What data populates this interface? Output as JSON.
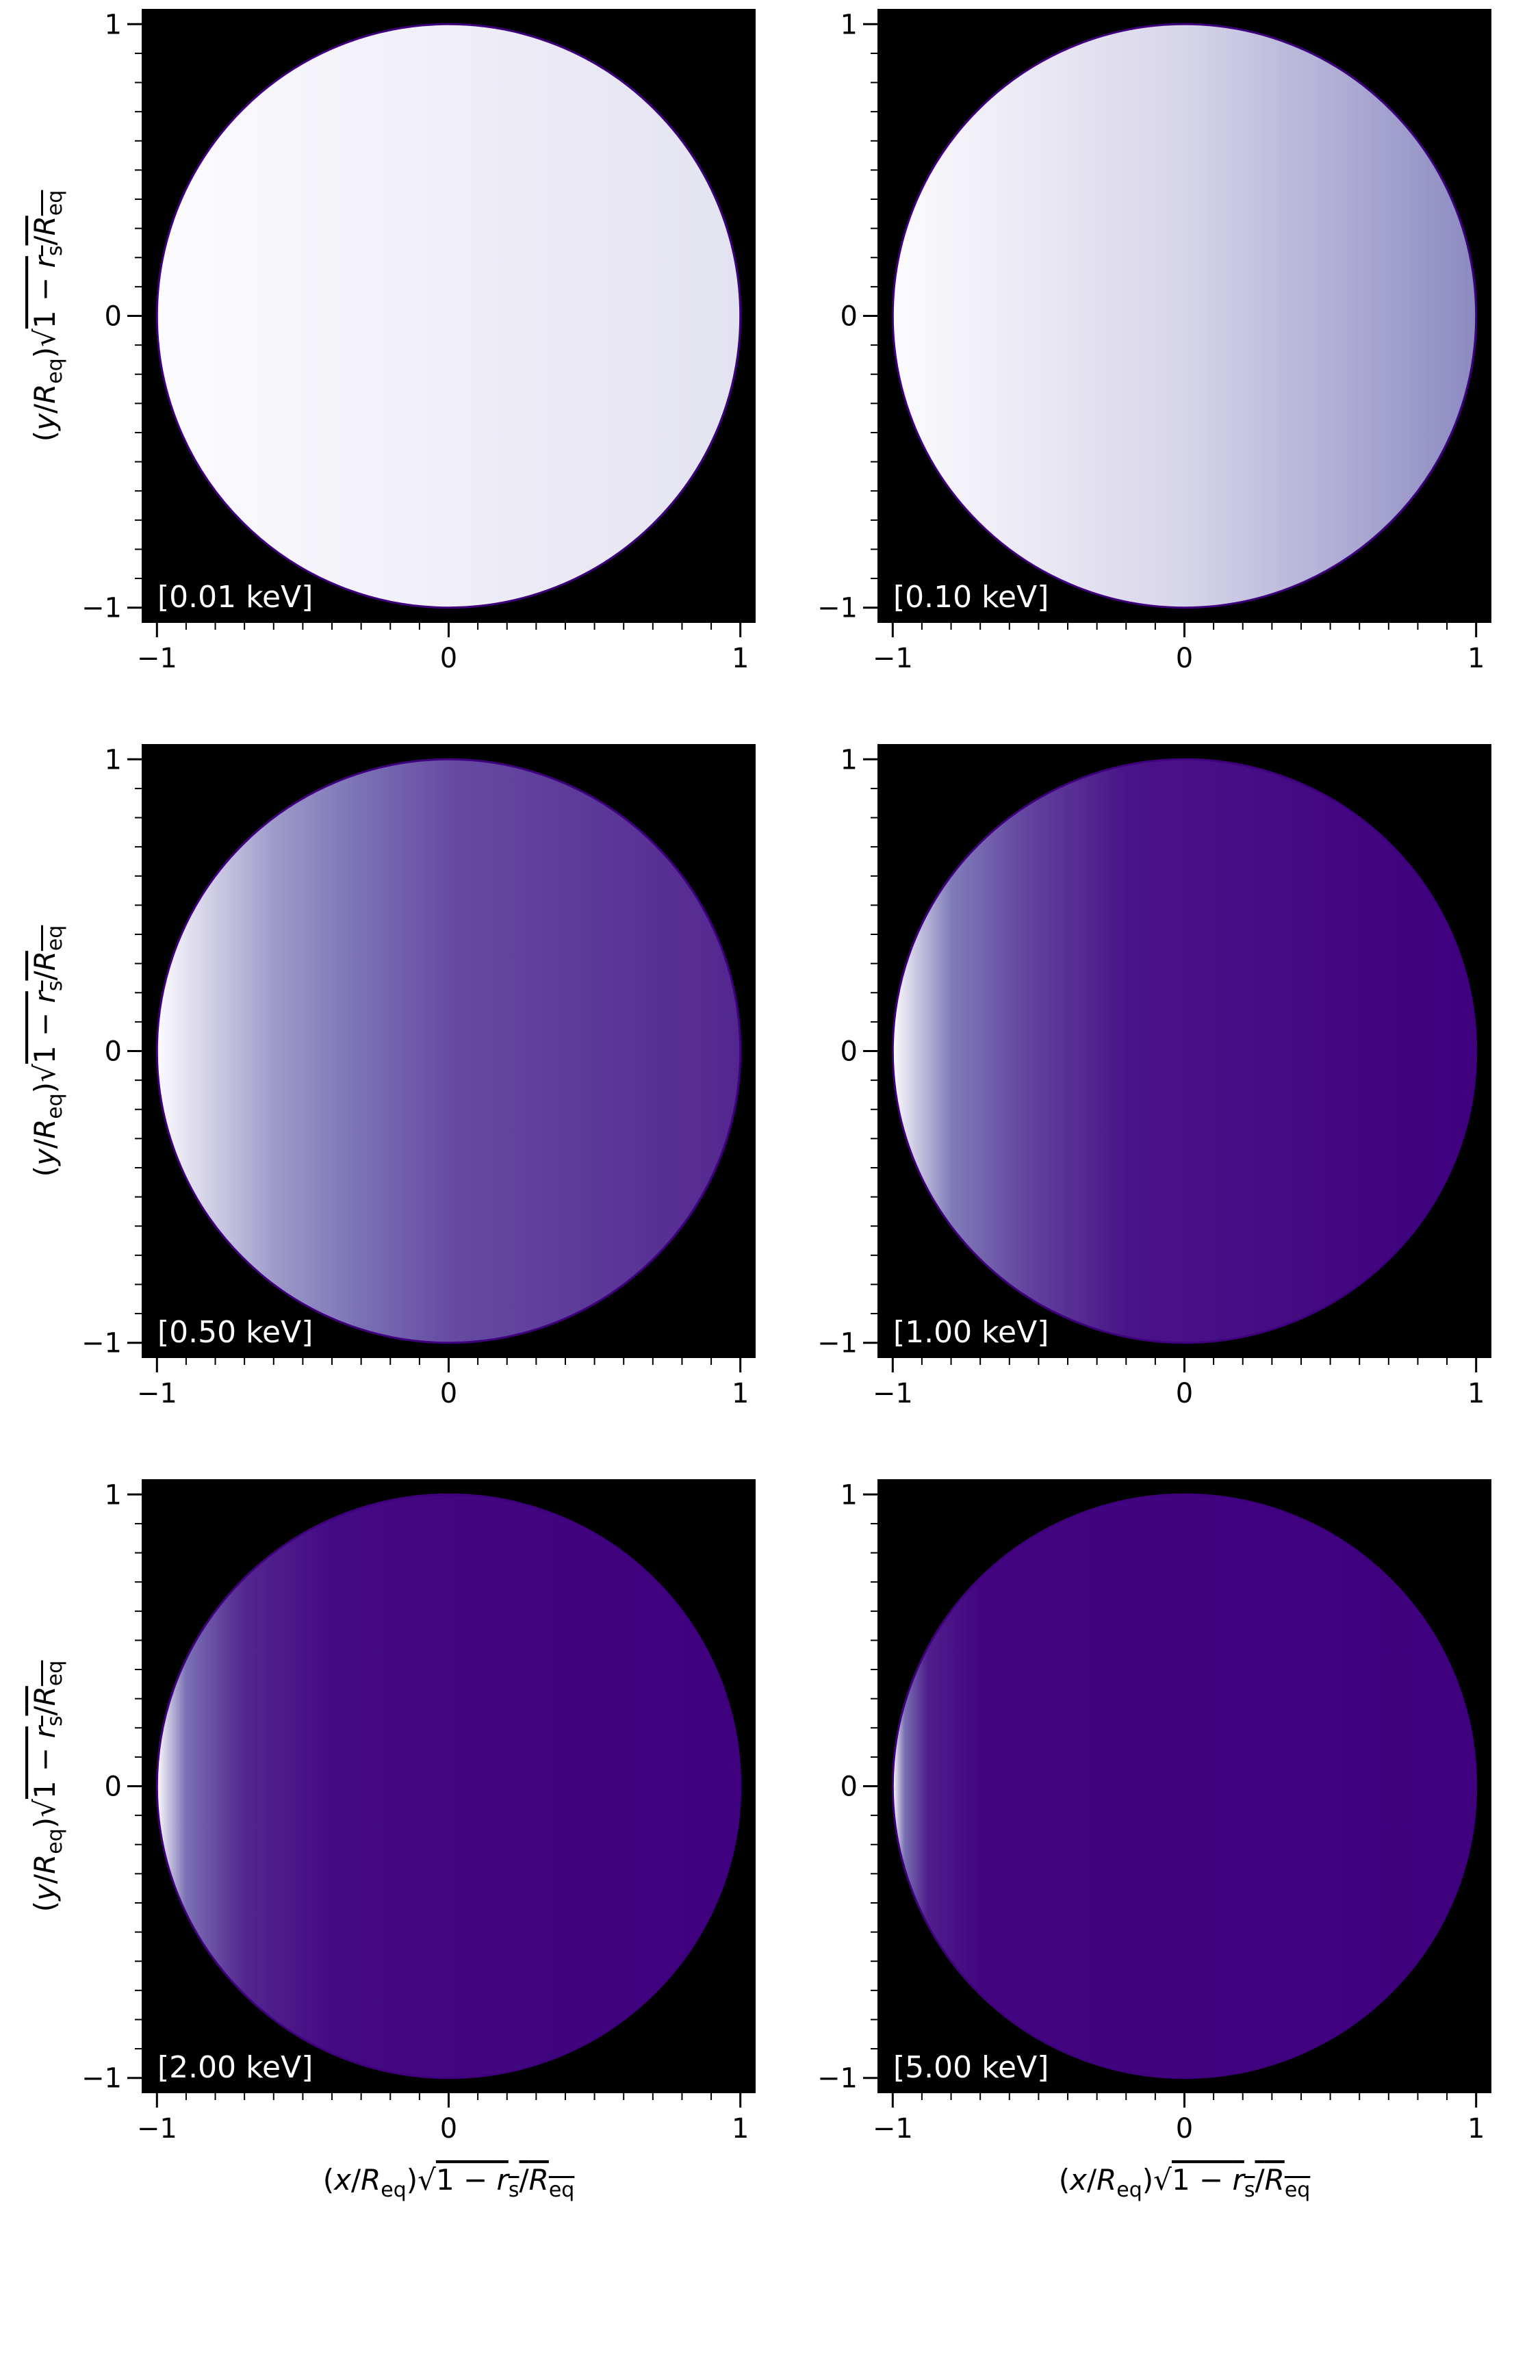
{
  "chart_data": [
    {
      "type": "heatmap",
      "label": "[0.01 keV]",
      "xlim": [
        -1.05,
        1.05
      ],
      "ylim": [
        -1.05,
        1.05
      ],
      "xticks": [
        -1,
        0,
        1
      ],
      "yticks": [
        -1,
        0,
        1
      ],
      "xticklabels": [
        "−1",
        "0",
        "1"
      ],
      "yticklabels": [
        "−1",
        "0",
        "1"
      ],
      "ylabel": "(y/R_eq)√(1−r_s/R_eq)",
      "xlabel": "",
      "intensity_profile": [
        [
          -1.0,
          1.0
        ],
        [
          1.0,
          0.9
        ]
      ]
    },
    {
      "type": "heatmap",
      "label": "[0.10 keV]",
      "xlim": [
        -1.05,
        1.05
      ],
      "ylim": [
        -1.05,
        1.05
      ],
      "xticks": [
        -1,
        0,
        1
      ],
      "yticks": [
        -1,
        0,
        1
      ],
      "xticklabels": [
        "−1",
        "0",
        "1"
      ],
      "yticklabels": [
        "−1",
        "0",
        "1"
      ],
      "ylabel": "",
      "xlabel": "",
      "intensity_profile": [
        [
          -1.0,
          1.0
        ],
        [
          0.0,
          0.85
        ],
        [
          1.0,
          0.55
        ]
      ]
    },
    {
      "type": "heatmap",
      "label": "[0.50 keV]",
      "xlim": [
        -1.05,
        1.05
      ],
      "ylim": [
        -1.05,
        1.05
      ],
      "xticks": [
        -1,
        0,
        1
      ],
      "yticks": [
        -1,
        0,
        1
      ],
      "xticklabels": [
        "−1",
        "0",
        "1"
      ],
      "yticklabels": [
        "−1",
        "0",
        "1"
      ],
      "ylabel": "(y/R_eq)√(1−r_s/R_eq)",
      "xlabel": "",
      "intensity_profile": [
        [
          -1.0,
          1.0
        ],
        [
          -0.6,
          0.62
        ],
        [
          -0.3,
          0.45
        ],
        [
          0.0,
          0.3
        ],
        [
          1.0,
          0.15
        ]
      ]
    },
    {
      "type": "heatmap",
      "label": "[1.00 keV]",
      "xlim": [
        -1.05,
        1.05
      ],
      "ylim": [
        -1.05,
        1.05
      ],
      "xticks": [
        -1,
        0,
        1
      ],
      "yticks": [
        -1,
        0,
        1
      ],
      "xticklabels": [
        "−1",
        "0",
        "1"
      ],
      "yticklabels": [
        "−1",
        "0",
        "1"
      ],
      "ylabel": "",
      "xlabel": "",
      "intensity_profile": [
        [
          -1.0,
          1.0
        ],
        [
          -0.8,
          0.5
        ],
        [
          -0.55,
          0.28
        ],
        [
          -0.2,
          0.08
        ],
        [
          1.0,
          0.0
        ]
      ]
    },
    {
      "type": "heatmap",
      "label": "[2.00 keV]",
      "xlim": [
        -1.05,
        1.05
      ],
      "ylim": [
        -1.05,
        1.05
      ],
      "xticks": [
        -1,
        0,
        1
      ],
      "yticks": [
        -1,
        0,
        1
      ],
      "xticklabels": [
        "−1",
        "0",
        "1"
      ],
      "yticklabels": [
        "−1",
        "0",
        "1"
      ],
      "ylabel": "(y/R_eq)√(1−r_s/R_eq)",
      "xlabel": "(x/R_eq)√(1−r_s/R_eq)",
      "intensity_profile": [
        [
          -1.0,
          1.0
        ],
        [
          -0.9,
          0.45
        ],
        [
          -0.7,
          0.15
        ],
        [
          -0.4,
          0.04
        ],
        [
          1.0,
          0.0
        ]
      ]
    },
    {
      "type": "heatmap",
      "label": "[5.00 keV]",
      "xlim": [
        -1.05,
        1.05
      ],
      "ylim": [
        -1.05,
        1.05
      ],
      "xticks": [
        -1,
        0,
        1
      ],
      "yticks": [
        -1,
        0,
        1
      ],
      "xticklabels": [
        "−1",
        "0",
        "1"
      ],
      "yticklabels": [
        "−1",
        "0",
        "1"
      ],
      "ylabel": "",
      "xlabel": "(x/R_eq)√(1−r_s/R_eq)",
      "intensity_profile": [
        [
          -1.0,
          1.0
        ],
        [
          -0.96,
          0.45
        ],
        [
          -0.88,
          0.12
        ],
        [
          -0.7,
          0.02
        ],
        [
          1.0,
          0.0
        ]
      ]
    }
  ],
  "colors": {
    "background": "#000000",
    "low": "#3f007d",
    "mid": "#807dba",
    "high": "#fcfbfd",
    "disk_edge": "#3f007d"
  }
}
